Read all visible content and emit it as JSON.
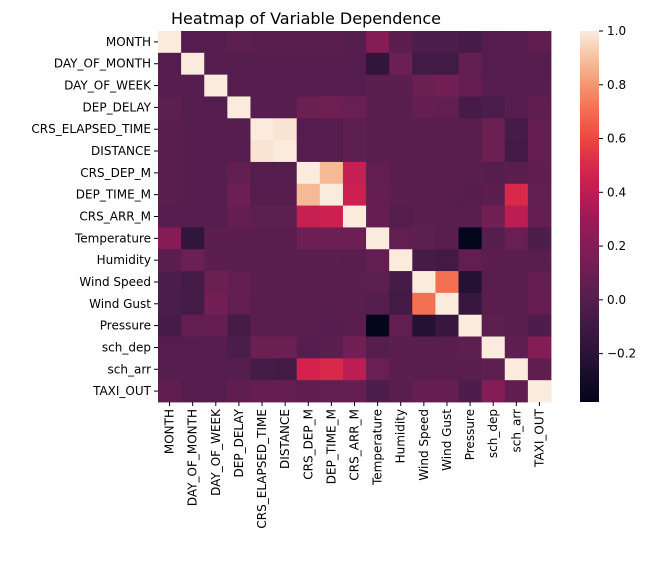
{
  "chart_data": {
    "type": "heatmap",
    "title": "Heatmap of Variable Dependence",
    "xlabel": "",
    "ylabel": "",
    "variables": [
      "MONTH",
      "DAY_OF_MONTH",
      "DAY_OF_WEEK",
      "DEP_DELAY",
      "CRS_ELAPSED_TIME",
      "DISTANCE",
      "CRS_DEP_M",
      "DEP_TIME_M",
      "CRS_ARR_M",
      "Temperature",
      "Humidity",
      "Wind Speed",
      "Wind Gust",
      "Pressure",
      "sch_dep",
      "sch_arr",
      "TAXI_OUT"
    ],
    "matrix": [
      [
        1.0,
        0.0,
        0.01,
        0.04,
        0.02,
        0.02,
        0.02,
        0.02,
        0.01,
        0.21,
        0.03,
        -0.03,
        -0.04,
        -0.07,
        0.0,
        0.01,
        0.05
      ],
      [
        0.0,
        1.0,
        0.01,
        0.0,
        0.01,
        0.01,
        0.01,
        0.01,
        0.0,
        -0.17,
        0.1,
        -0.09,
        -0.09,
        0.06,
        0.0,
        0.01,
        0.0
      ],
      [
        0.01,
        0.01,
        1.0,
        0.0,
        0.01,
        0.01,
        0.01,
        0.01,
        0.0,
        0.03,
        0.03,
        0.1,
        0.13,
        0.08,
        0.01,
        0.01,
        0.01
      ],
      [
        0.04,
        0.0,
        0.0,
        1.0,
        0.01,
        0.01,
        0.1,
        0.12,
        0.09,
        0.03,
        0.02,
        0.07,
        0.06,
        -0.06,
        -0.04,
        0.01,
        0.05
      ],
      [
        0.02,
        0.01,
        0.01,
        0.01,
        1.0,
        0.98,
        0.0,
        0.0,
        0.04,
        0.02,
        0.03,
        0.02,
        0.02,
        0.02,
        0.1,
        -0.07,
        0.07
      ],
      [
        0.02,
        0.01,
        0.01,
        0.01,
        0.98,
        1.0,
        0.0,
        0.0,
        0.04,
        0.02,
        0.03,
        0.02,
        0.02,
        0.02,
        0.1,
        -0.08,
        0.07
      ],
      [
        0.02,
        0.01,
        0.01,
        0.06,
        0.0,
        0.0,
        1.0,
        0.88,
        0.43,
        0.06,
        0.02,
        0.02,
        0.02,
        0.02,
        0.01,
        0.02,
        0.05
      ],
      [
        0.02,
        0.01,
        0.01,
        0.1,
        0.0,
        0.0,
        0.88,
        1.0,
        0.45,
        0.07,
        0.03,
        0.02,
        0.02,
        0.01,
        0.03,
        0.5,
        0.06
      ],
      [
        0.01,
        0.0,
        0.01,
        0.07,
        0.04,
        0.04,
        0.43,
        0.45,
        1.0,
        0.07,
        0.0,
        0.03,
        0.02,
        0.02,
        0.13,
        0.4,
        0.07
      ],
      [
        0.21,
        -0.17,
        0.03,
        0.03,
        0.02,
        0.02,
        0.1,
        0.1,
        0.1,
        1.0,
        0.06,
        0.04,
        0.02,
        -0.38,
        0.01,
        0.09,
        -0.03
      ],
      [
        0.03,
        0.1,
        0.03,
        0.02,
        0.03,
        0.03,
        0.03,
        0.03,
        0.02,
        0.06,
        1.0,
        -0.07,
        -0.08,
        0.06,
        0.03,
        0.03,
        0.02
      ],
      [
        -0.03,
        -0.07,
        0.1,
        0.07,
        0.02,
        0.02,
        0.02,
        0.02,
        0.03,
        0.04,
        -0.07,
        1.0,
        0.71,
        -0.23,
        0.02,
        0.02,
        0.07
      ],
      [
        -0.04,
        -0.07,
        0.13,
        0.06,
        0.02,
        0.02,
        0.02,
        0.02,
        0.02,
        0.0,
        -0.08,
        0.71,
        1.0,
        -0.14,
        0.02,
        0.02,
        0.08
      ],
      [
        -0.07,
        0.06,
        0.08,
        -0.06,
        0.02,
        0.02,
        0.02,
        0.01,
        0.02,
        -0.38,
        0.06,
        -0.23,
        -0.14,
        1.0,
        0.04,
        0.02,
        -0.02
      ],
      [
        0.0,
        0.0,
        0.01,
        -0.04,
        0.1,
        0.1,
        0.01,
        0.03,
        0.13,
        0.01,
        0.03,
        0.02,
        0.02,
        0.04,
        1.0,
        0.04,
        0.2
      ],
      [
        0.01,
        0.01,
        0.01,
        0.01,
        -0.07,
        -0.08,
        0.48,
        0.5,
        0.4,
        0.09,
        0.03,
        0.02,
        0.02,
        0.02,
        0.04,
        1.0,
        0.05
      ],
      [
        0.05,
        0.0,
        0.01,
        0.05,
        0.07,
        0.07,
        0.05,
        0.06,
        0.07,
        -0.03,
        0.02,
        0.07,
        0.08,
        -0.02,
        0.2,
        0.05,
        1.0
      ]
    ],
    "vmin": -0.38,
    "vmax": 1.0,
    "colorbar_ticks": [
      1.0,
      0.8,
      0.6,
      0.4,
      0.2,
      0.0,
      -0.2
    ],
    "colorbar_tick_labels": [
      "1.0",
      "0.8",
      "0.6",
      "0.4",
      "0.2",
      "0.0",
      "−0.2"
    ],
    "colormap": "rocket",
    "grid": false
  }
}
